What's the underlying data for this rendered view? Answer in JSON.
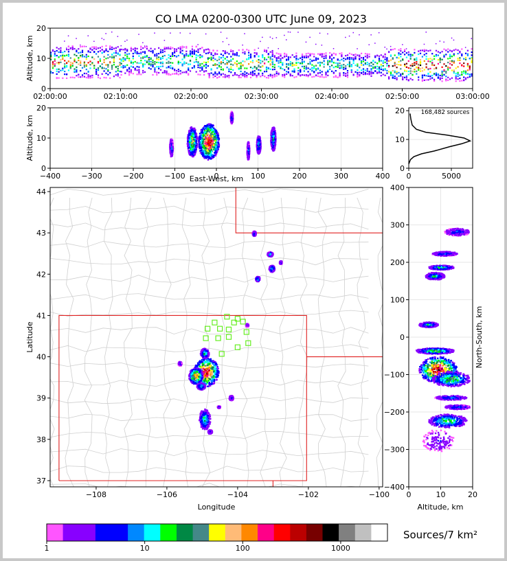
{
  "title": "CO LMA 0200-0300 UTC June 09, 2023",
  "colorbar": {
    "label": "Sources/7 km²",
    "ticks": [
      "1",
      "10",
      "100",
      "1000"
    ],
    "colors": [
      "#ff55ff",
      "#8800ff",
      "#8800ff",
      "#0000ff",
      "#0000ff",
      "#0088ff",
      "#00ffff",
      "#00ff00",
      "#008844",
      "#448888",
      "#ffff00",
      "#ffbb77",
      "#ff8800",
      "#ff0088",
      "#ff0000",
      "#bb0000",
      "#770000",
      "#000000",
      "#808080",
      "#c0c0c0",
      "#ffffff"
    ]
  },
  "time_altitude": {
    "ylabel": "Altitude, km",
    "yticks": [
      "0",
      "10",
      "20"
    ],
    "xticks": [
      "02:00:00",
      "02:10:00",
      "02:20:00",
      "02:30:00",
      "02:40:00",
      "02:50:00",
      "03:00:00"
    ]
  },
  "ew_altitude": {
    "xlabel": "East-West, km",
    "ylabel": "Altitude, km",
    "xticks": [
      "−400",
      "−300",
      "−200",
      "−100",
      "0",
      "100",
      "200",
      "300",
      "400"
    ],
    "yticks": [
      "0",
      "10",
      "20"
    ]
  },
  "histogram": {
    "annotation": "168,482 sources",
    "xticks": [
      "0",
      "5000"
    ],
    "yticks": [
      "0",
      "10",
      "20"
    ]
  },
  "plan_view": {
    "xlabel": "Longitude",
    "ylabel": "Latitude",
    "xticks": [
      "−108",
      "−106",
      "−104",
      "−102",
      "−100"
    ],
    "yticks": [
      "37",
      "38",
      "39",
      "40",
      "41",
      "42",
      "43",
      "44"
    ]
  },
  "ns_altitude": {
    "xlabel": "Altitude, km",
    "ylabel": "North-South, km",
    "xticks": [
      "0",
      "10",
      "20"
    ],
    "yticks": [
      "−400",
      "−300",
      "−200",
      "−100",
      "0",
      "100",
      "200",
      "300",
      "400"
    ]
  },
  "chart_data": [
    {
      "type": "heatmap",
      "panel": "time-altitude",
      "xlim": [
        "02:00:00",
        "03:00:00"
      ],
      "ylim": [
        0,
        20
      ],
      "ylabel": "Altitude, km",
      "bands": [
        {
          "t0": 0.0,
          "t1": 10.0,
          "center_km": 9,
          "half_km": 4,
          "intensity": 0.8
        },
        {
          "t0": 10.0,
          "t1": 22.5,
          "center_km": 9.5,
          "half_km": 3.5,
          "intensity": 0.6
        },
        {
          "t0": 22.5,
          "t1": 31.5,
          "center_km": 8.5,
          "half_km": 3.5,
          "intensity": 0.7
        },
        {
          "t0": 31.5,
          "t1": 48.0,
          "center_km": 8,
          "half_km": 3,
          "intensity": 0.55
        },
        {
          "t0": 48.0,
          "t1": 60.0,
          "center_km": 8,
          "half_km": 4,
          "intensity": 0.95
        }
      ]
    },
    {
      "type": "heatmap",
      "panel": "east-west-altitude",
      "xlim": [
        -400,
        400
      ],
      "ylim": [
        0,
        20
      ],
      "xlabel": "East-West, km",
      "ylabel": "Altitude, km",
      "blobs": [
        {
          "x": -20,
          "z": 9,
          "w": 25,
          "h": 6,
          "intensity": 1.0
        },
        {
          "x": -60,
          "z": 9,
          "w": 12,
          "h": 5,
          "intensity": 0.7
        },
        {
          "x": -110,
          "z": 7,
          "w": 4,
          "h": 3,
          "intensity": 0.35
        },
        {
          "x": 35,
          "z": 17,
          "w": 3,
          "h": 2,
          "intensity": 0.3
        },
        {
          "x": 75,
          "z": 6,
          "w": 3,
          "h": 3,
          "intensity": 0.35
        },
        {
          "x": 100,
          "z": 8,
          "w": 5,
          "h": 3,
          "intensity": 0.45
        },
        {
          "x": 135,
          "z": 10,
          "w": 6,
          "h": 4,
          "intensity": 0.5
        }
      ]
    },
    {
      "type": "line",
      "panel": "altitude-histogram",
      "annotation": "168,482 sources",
      "xlim": [
        0,
        7500
      ],
      "ylim": [
        0,
        21
      ],
      "x": [
        0,
        200,
        600,
        1500,
        3000,
        4800,
        6200,
        7200,
        6500,
        4500,
        2000,
        900,
        400,
        250,
        150
      ],
      "y": [
        1.5,
        3,
        4,
        5,
        6,
        7.5,
        8.5,
        9.5,
        10.5,
        11.5,
        12.5,
        13.5,
        15,
        17,
        19
      ]
    },
    {
      "type": "heatmap",
      "panel": "plan-view",
      "xlim": [
        -109.3,
        -99.9
      ],
      "ylim": [
        36.85,
        44.1
      ],
      "xlabel": "Longitude",
      "ylabel": "Latitude",
      "state_borders": [
        {
          "x": [
            -109.05,
            -102.05,
            -102.05,
            -109.05,
            -109.05
          ],
          "y": [
            37,
            37,
            41,
            41,
            37
          ]
        },
        {
          "x": [
            -104.05,
            -104.05,
            -99.9
          ],
          "y": [
            44.1,
            43,
            43
          ]
        },
        {
          "x": [
            -102.05,
            -99.9
          ],
          "y": [
            40,
            40
          ]
        },
        {
          "x": [
            -103,
            -103
          ],
          "y": [
            37,
            36.85
          ]
        }
      ],
      "blobs": [
        {
          "lon": -104.9,
          "lat": 39.65,
          "wlon": 0.35,
          "wlat": 0.35,
          "intensity": 1.0
        },
        {
          "lon": -105.2,
          "lat": 39.55,
          "wlon": 0.2,
          "wlat": 0.2,
          "intensity": 0.8
        },
        {
          "lon": -104.95,
          "lat": 40.1,
          "wlon": 0.12,
          "wlat": 0.12,
          "intensity": 0.5
        },
        {
          "lon": -105.05,
          "lat": 39.3,
          "wlon": 0.12,
          "wlat": 0.08,
          "intensity": 0.45
        },
        {
          "lon": -105.65,
          "lat": 39.85,
          "wlon": 0.05,
          "wlat": 0.05,
          "intensity": 0.3
        },
        {
          "lon": -104.2,
          "lat": 39.02,
          "wlon": 0.06,
          "wlat": 0.06,
          "intensity": 0.35
        },
        {
          "lon": -104.55,
          "lat": 38.8,
          "wlon": 0.04,
          "wlat": 0.03,
          "intensity": 0.25
        },
        {
          "lon": -104.95,
          "lat": 38.5,
          "wlon": 0.16,
          "wlat": 0.25,
          "intensity": 0.5
        },
        {
          "lon": -104.8,
          "lat": 38.2,
          "wlon": 0.06,
          "wlat": 0.05,
          "intensity": 0.35
        },
        {
          "lon": -103.75,
          "lat": 40.78,
          "wlon": 0.04,
          "wlat": 0.04,
          "intensity": 0.3
        },
        {
          "lon": -103.55,
          "lat": 43.0,
          "wlon": 0.05,
          "wlat": 0.06,
          "intensity": 0.35
        },
        {
          "lon": -103.1,
          "lat": 42.5,
          "wlon": 0.08,
          "wlat": 0.06,
          "intensity": 0.4
        },
        {
          "lon": -103.05,
          "lat": 42.15,
          "wlon": 0.08,
          "wlat": 0.08,
          "intensity": 0.45
        },
        {
          "lon": -102.8,
          "lat": 42.3,
          "wlon": 0.04,
          "wlat": 0.04,
          "intensity": 0.3
        },
        {
          "lon": -103.45,
          "lat": 41.9,
          "wlon": 0.06,
          "wlat": 0.06,
          "intensity": 0.45
        }
      ],
      "stations": [
        {
          "lon": -104.3,
          "lat": 40.97
        },
        {
          "lon": -104.0,
          "lat": 40.92
        },
        {
          "lon": -103.85,
          "lat": 40.85
        },
        {
          "lon": -104.1,
          "lat": 40.83
        },
        {
          "lon": -104.65,
          "lat": 40.83
        },
        {
          "lon": -104.85,
          "lat": 40.68
        },
        {
          "lon": -104.5,
          "lat": 40.68
        },
        {
          "lon": -104.25,
          "lat": 40.66
        },
        {
          "lon": -103.75,
          "lat": 40.6
        },
        {
          "lon": -104.9,
          "lat": 40.45
        },
        {
          "lon": -104.55,
          "lat": 40.45
        },
        {
          "lon": -104.25,
          "lat": 40.48
        },
        {
          "lon": -103.7,
          "lat": 40.33
        },
        {
          "lon": -104.0,
          "lat": 40.23
        },
        {
          "lon": -104.45,
          "lat": 40.07
        }
      ]
    },
    {
      "type": "heatmap",
      "panel": "north-south-altitude",
      "xlim": [
        0,
        20
      ],
      "ylim": [
        -400,
        400
      ],
      "xlabel": "Altitude, km",
      "ylabel": "North-South, km",
      "blobs": [
        {
          "z": 9,
          "y": -85,
          "hz": 6,
          "hy": 35,
          "intensity": 1.0
        },
        {
          "z": 8,
          "y": -35,
          "hz": 6,
          "hy": 8,
          "intensity": 0.6
        },
        {
          "z": 13,
          "y": -110,
          "hz": 6,
          "hy": 20,
          "intensity": 0.6
        },
        {
          "z": 13,
          "y": -160,
          "hz": 5,
          "hy": 6,
          "intensity": 0.35
        },
        {
          "z": 12,
          "y": -222,
          "hz": 6,
          "hy": 18,
          "intensity": 0.55
        },
        {
          "z": 15,
          "y": -185,
          "hz": 4,
          "hy": 6,
          "intensity": 0.35
        },
        {
          "z": 9,
          "y": -275,
          "hz": 5,
          "hy": 30,
          "intensity": 0.2
        },
        {
          "z": 6,
          "y": 35,
          "hz": 3,
          "hy": 7,
          "intensity": 0.45
        },
        {
          "z": 8,
          "y": 165,
          "hz": 3,
          "hy": 10,
          "intensity": 0.45
        },
        {
          "z": 10,
          "y": 188,
          "hz": 4,
          "hy": 6,
          "intensity": 0.5
        },
        {
          "z": 11,
          "y": 225,
          "hz": 4,
          "hy": 6,
          "intensity": 0.35
        },
        {
          "z": 15,
          "y": 283,
          "hz": 4,
          "hy": 10,
          "intensity": 0.3
        }
      ]
    }
  ]
}
